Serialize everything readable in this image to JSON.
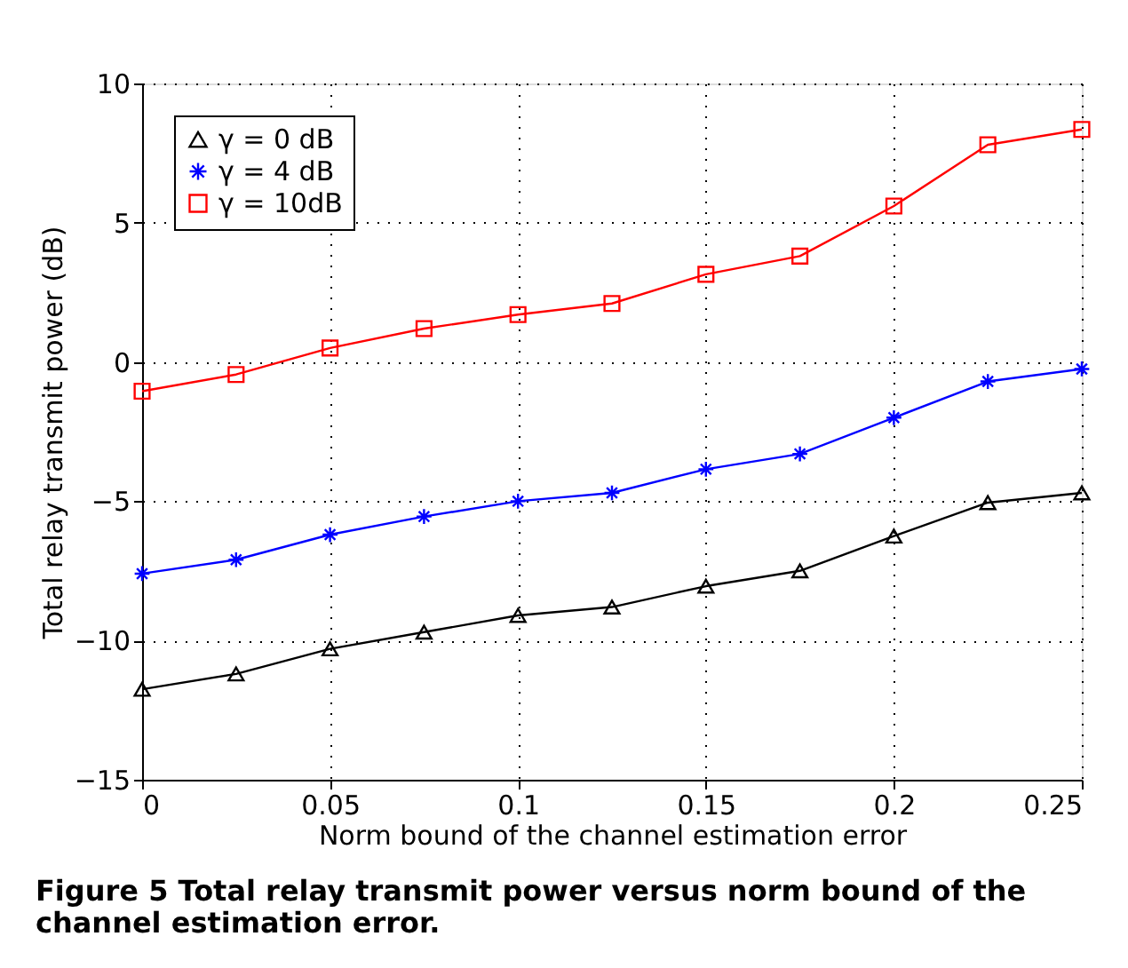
{
  "chart_data": {
    "type": "line",
    "xlabel": "Norm bound of the channel estimation error",
    "ylabel": "Total relay transmit power (dB)",
    "annotations": [
      "Figure 5 Total relay transmit power versus norm bound of the channel estimation error."
    ],
    "x": [
      0,
      0.025,
      0.05,
      0.075,
      0.1,
      0.125,
      0.15,
      0.175,
      0.2,
      0.225,
      0.25
    ],
    "series": [
      {
        "name": "γ = 0 dB",
        "color": "#000000",
        "marker": "triangle",
        "values": [
          -11.75,
          -11.2,
          -10.3,
          -9.7,
          -9.1,
          -8.8,
          -8.05,
          -7.5,
          -6.25,
          -5.05,
          -4.7
        ]
      },
      {
        "name": "γ = 4 dB",
        "color": "#0000ff",
        "marker": "cross",
        "values": [
          -7.6,
          -7.1,
          -6.2,
          -5.55,
          -5.0,
          -4.7,
          -3.85,
          -3.3,
          -2.0,
          -0.7,
          -0.25
        ]
      },
      {
        "name": "γ = 10dB",
        "color": "#ff0000",
        "marker": "square",
        "values": [
          -1.05,
          -0.45,
          0.5,
          1.2,
          1.7,
          2.1,
          3.15,
          3.8,
          5.6,
          7.8,
          8.35
        ]
      }
    ],
    "xlim": [
      0,
      0.25
    ],
    "xticks": [
      0,
      0.05,
      0.1,
      0.15,
      0.2,
      0.25
    ],
    "ylim": [
      -15,
      10
    ],
    "yticks": [
      -15,
      -10,
      -5,
      0,
      5,
      10
    ],
    "grid": true,
    "legend": "top left",
    "line_style": "solid"
  }
}
